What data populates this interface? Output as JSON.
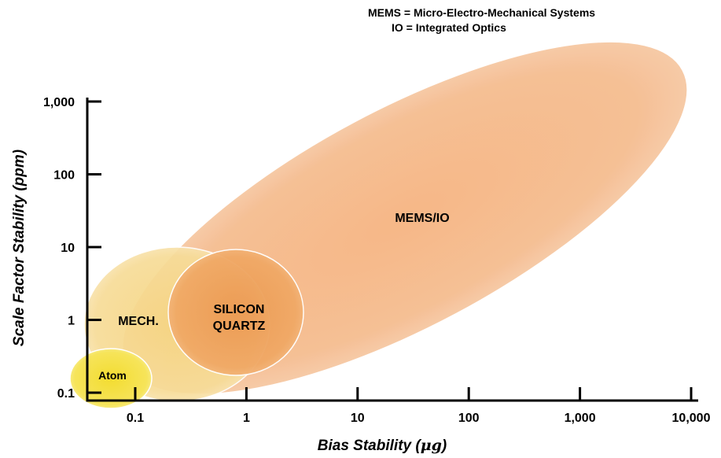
{
  "legend": [
    {
      "abbr": "MEMS",
      "definition": "Micro-Electro-Mechanical Systems"
    },
    {
      "abbr": "IO",
      "definition": "Integrated Optics"
    }
  ],
  "chart_data": {
    "type": "bubble-region",
    "xlabel": "Bias Stability (μg)",
    "xlabel_main": "Bias Stability (",
    "xlabel_unit": "μg",
    "xlabel_close": ")",
    "ylabel": "Scale Factor Stability (ppm)",
    "x_scale": "log",
    "y_scale": "log",
    "x_ticks": [
      {
        "value": 0.1,
        "label": "0.1"
      },
      {
        "value": 1,
        "label": "1"
      },
      {
        "value": 10,
        "label": "10"
      },
      {
        "value": 100,
        "label": "100"
      },
      {
        "value": 1000,
        "label": "1,000"
      },
      {
        "value": 10000,
        "label": "10,000"
      }
    ],
    "y_ticks": [
      {
        "value": 0.1,
        "label": "0.1"
      },
      {
        "value": 1,
        "label": "1"
      },
      {
        "value": 10,
        "label": "10"
      },
      {
        "value": 100,
        "label": "100"
      },
      {
        "value": 1000,
        "label": "1,000"
      }
    ],
    "xlim": [
      0.03,
      10000
    ],
    "ylim": [
      0.08,
      1500
    ],
    "grid": false,
    "regions": [
      {
        "label": "MEMS/IO",
        "color": "#f5b98a",
        "x_range": [
          0.5,
          10000
        ],
        "y_range": [
          0.2,
          1500
        ]
      },
      {
        "label": "MECH.",
        "color": "#f7d98c",
        "x_range": [
          0.03,
          1
        ],
        "y_range": [
          0.09,
          10
        ]
      },
      {
        "label": "SILICON QUARTZ",
        "label_lines": [
          "SILICON",
          "QUARTZ"
        ],
        "color": "#f0a35c",
        "x_range": [
          0.3,
          3
        ],
        "y_range": [
          0.2,
          10
        ]
      },
      {
        "label": "Atom",
        "color": "#f5e04a",
        "x_range": [
          0.03,
          0.15
        ],
        "y_range": [
          0.08,
          0.3
        ]
      }
    ]
  }
}
